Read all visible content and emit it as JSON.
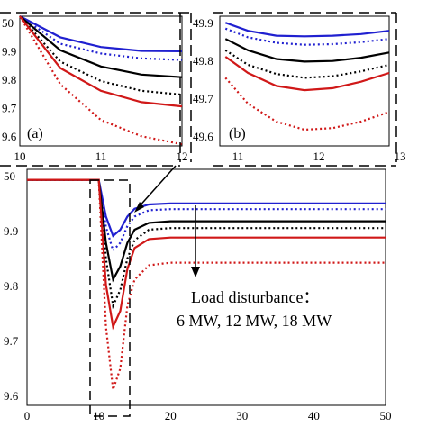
{
  "chart_data": [
    {
      "panel": "(a)",
      "type": "line",
      "xlim": [
        10,
        12
      ],
      "ylim": [
        49.6,
        50.0
      ],
      "xticks": [
        "10",
        "11",
        "12"
      ],
      "yticks": [
        "50",
        "9.9",
        "9.8",
        "9.7",
        "9.6"
      ],
      "series": [
        {
          "color": "#2020d0",
          "style": "solid",
          "x": [
            10,
            10.5,
            11,
            11.5,
            12
          ],
          "y": [
            50.0,
            49.935,
            49.905,
            49.893,
            49.892
          ]
        },
        {
          "color": "#2020d0",
          "style": "dotted",
          "x": [
            10,
            10.5,
            11,
            11.5,
            12
          ],
          "y": [
            50.0,
            49.915,
            49.885,
            49.87,
            49.865
          ]
        },
        {
          "color": "#000000",
          "style": "solid",
          "x": [
            10,
            10.5,
            11,
            11.5,
            12
          ],
          "y": [
            50.0,
            49.895,
            49.845,
            49.82,
            49.812
          ]
        },
        {
          "color": "#000000",
          "style": "dotted",
          "x": [
            10,
            10.5,
            11,
            11.5,
            12
          ],
          "y": [
            50.0,
            49.86,
            49.8,
            49.77,
            49.758
          ]
        },
        {
          "color": "#d01818",
          "style": "solid",
          "x": [
            10,
            10.5,
            11,
            11.5,
            12
          ],
          "y": [
            50.0,
            49.84,
            49.77,
            49.735,
            49.722
          ]
        },
        {
          "color": "#d01818",
          "style": "dotted",
          "x": [
            10,
            10.5,
            11,
            11.5,
            12
          ],
          "y": [
            50.0,
            49.79,
            49.68,
            49.63,
            49.605
          ]
        }
      ]
    },
    {
      "panel": "(b)",
      "type": "line",
      "xlim": [
        10.5,
        13.5
      ],
      "ylim": [
        49.55,
        49.95
      ],
      "xticks": [
        "11",
        "12",
        "13"
      ],
      "yticks": [
        "49.9",
        "49.8",
        "49.7",
        "49.6"
      ],
      "series": [
        {
          "color": "#2020d0",
          "style": "solid",
          "x": [
            10.6,
            11,
            11.5,
            12,
            12.5,
            13,
            13.5
          ],
          "y": [
            49.93,
            49.905,
            49.89,
            49.888,
            49.89,
            49.895,
            49.905
          ]
        },
        {
          "color": "#2020d0",
          "style": "dotted",
          "x": [
            10.6,
            11,
            11.5,
            12,
            12.5,
            13,
            13.5
          ],
          "y": [
            49.912,
            49.885,
            49.868,
            49.862,
            49.864,
            49.87,
            49.88
          ]
        },
        {
          "color": "#000000",
          "style": "solid",
          "x": [
            10.6,
            11,
            11.5,
            12,
            12.5,
            13,
            13.5
          ],
          "y": [
            49.88,
            49.845,
            49.818,
            49.81,
            49.812,
            49.822,
            49.838
          ]
        },
        {
          "color": "#000000",
          "style": "dotted",
          "x": [
            10.6,
            11,
            11.5,
            12,
            12.5,
            13,
            13.5
          ],
          "y": [
            49.845,
            49.8,
            49.772,
            49.76,
            49.765,
            49.78,
            49.8
          ]
        },
        {
          "color": "#d01818",
          "style": "solid",
          "x": [
            10.6,
            11,
            11.5,
            12,
            12.5,
            13,
            13.5
          ],
          "y": [
            49.825,
            49.775,
            49.735,
            49.722,
            49.728,
            49.748,
            49.775
          ]
        },
        {
          "color": "#d01818",
          "style": "dotted",
          "x": [
            10.6,
            11,
            11.5,
            12,
            12.5,
            13,
            13.5
          ],
          "y": [
            49.76,
            49.68,
            49.625,
            49.6,
            49.605,
            49.625,
            49.655
          ]
        }
      ]
    },
    {
      "panel": "main",
      "type": "line",
      "xlim": [
        0,
        50
      ],
      "ylim": [
        49.57,
        50.02
      ],
      "xticks": [
        "0",
        "10",
        "20",
        "30",
        "40",
        "50"
      ],
      "yticks": [
        "50",
        "9.9",
        "9.8",
        "9.7",
        "9.6"
      ],
      "series": [
        {
          "color": "#2020d0",
          "style": "solid",
          "x": [
            0,
            10,
            11,
            12,
            13,
            14,
            15,
            17,
            20,
            25,
            30,
            40,
            50
          ],
          "y": [
            50.0,
            50.0,
            49.93,
            49.893,
            49.905,
            49.93,
            49.945,
            49.953,
            49.955,
            49.955,
            49.955,
            49.955,
            49.955
          ]
        },
        {
          "color": "#2020d0",
          "style": "dotted",
          "x": [
            0,
            10,
            11,
            12,
            13,
            14,
            15,
            17,
            20,
            25,
            30,
            40,
            50
          ],
          "y": [
            50.0,
            50.0,
            49.91,
            49.865,
            49.88,
            49.912,
            49.93,
            49.942,
            49.944,
            49.944,
            49.944,
            49.944,
            49.944
          ]
        },
        {
          "color": "#000000",
          "style": "solid",
          "x": [
            0,
            10,
            11,
            12,
            13,
            14,
            15,
            17,
            20,
            25,
            30,
            40,
            50
          ],
          "y": [
            50.0,
            50.0,
            49.88,
            49.81,
            49.835,
            49.88,
            49.905,
            49.918,
            49.921,
            49.921,
            49.921,
            49.921,
            49.921
          ]
        },
        {
          "color": "#000000",
          "style": "dotted",
          "x": [
            0,
            10,
            11,
            12,
            13,
            14,
            15,
            17,
            20,
            25,
            30,
            40,
            50
          ],
          "y": [
            50.0,
            50.0,
            49.85,
            49.76,
            49.79,
            49.85,
            49.885,
            49.905,
            49.908,
            49.908,
            49.908,
            49.908,
            49.908
          ]
        },
        {
          "color": "#d01818",
          "style": "solid",
          "x": [
            0,
            10,
            11,
            12,
            13,
            14,
            15,
            17,
            20,
            25,
            30,
            40,
            50
          ],
          "y": [
            50.0,
            50.0,
            49.8,
            49.72,
            49.75,
            49.83,
            49.87,
            49.887,
            49.89,
            49.89,
            49.89,
            49.89,
            49.89
          ]
        },
        {
          "color": "#d01818",
          "style": "dotted",
          "x": [
            0,
            10,
            11,
            12,
            13,
            14,
            15,
            17,
            20,
            25,
            30,
            40,
            50
          ],
          "y": [
            50.0,
            50.0,
            49.72,
            49.6,
            49.64,
            49.76,
            49.81,
            49.837,
            49.842,
            49.842,
            49.842,
            49.842,
            49.842
          ]
        }
      ],
      "annotation": [
        "Load disturbance：",
        "6 MW, 12 MW, 18 MW"
      ]
    }
  ]
}
